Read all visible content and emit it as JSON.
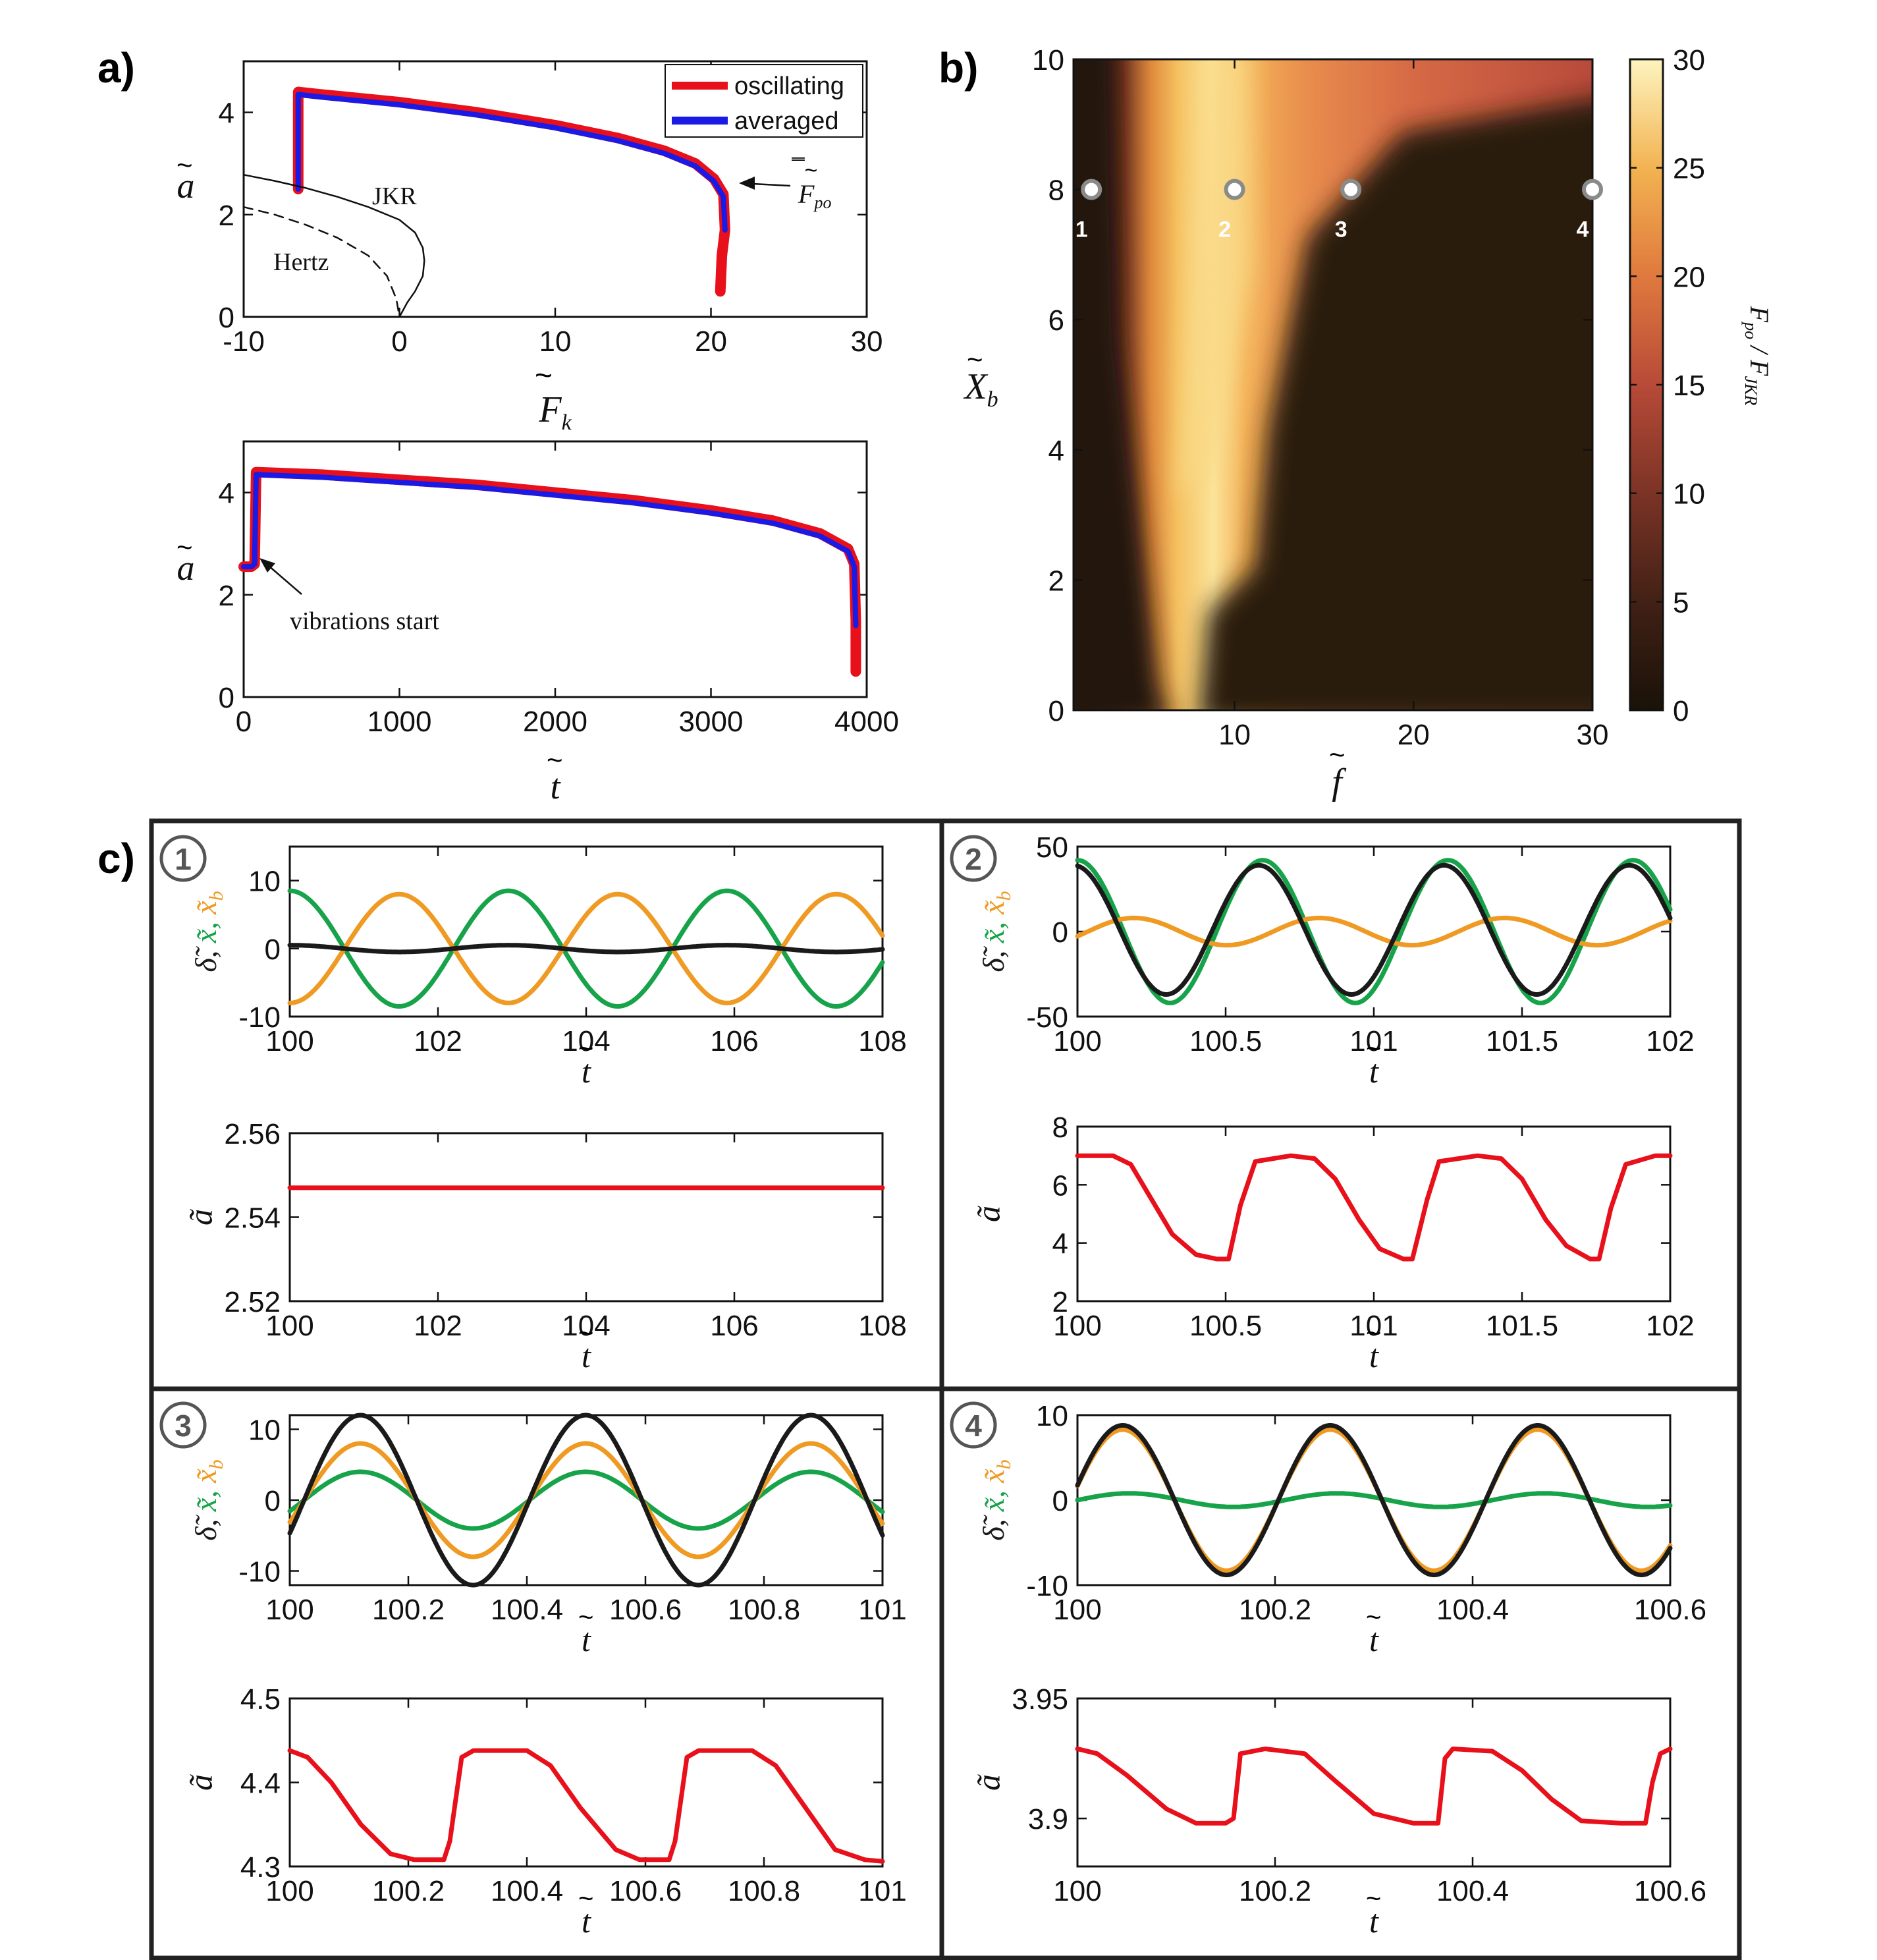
{
  "panel_labels": {
    "a": "a)",
    "b": "b)",
    "c": "c)"
  },
  "colors": {
    "oscillating": "#e8101a",
    "averaged": "#1a1ae6",
    "delta": "#1a1a1a",
    "x": "#17a34a",
    "xb": "#ef9a22",
    "a": "#e8101a"
  },
  "chart_data": [
    {
      "id": "a-top",
      "type": "line",
      "xlabel": "F~k",
      "ylabel": "a~",
      "xlim": [
        -10,
        30
      ],
      "ylim": [
        0,
        5
      ],
      "xticks": [
        "-10",
        "0",
        "10",
        "20",
        "30"
      ],
      "yticks": [
        "0",
        "2",
        "4"
      ],
      "legend": [
        "oscillating",
        "averaged"
      ],
      "legend_position": "top-right",
      "annotations": [
        "JKR",
        "Hertz",
        "F̿po"
      ],
      "series": [
        {
          "name": "oscillating",
          "x": [
            -6.5,
            -6.5,
            -5,
            0,
            5,
            10,
            14,
            17,
            19,
            20.2,
            20.8,
            20.9,
            20.7,
            20.6
          ],
          "y": [
            2.5,
            4.4,
            4.35,
            4.2,
            4.0,
            3.75,
            3.5,
            3.25,
            3.0,
            2.7,
            2.4,
            1.7,
            1.2,
            0.5
          ]
        },
        {
          "name": "averaged",
          "x": [
            -6.5,
            -6.5,
            -5,
            0,
            5,
            10,
            14,
            17,
            19,
            20.2,
            20.8,
            20.9
          ],
          "y": [
            2.5,
            4.35,
            4.3,
            4.15,
            3.95,
            3.7,
            3.45,
            3.2,
            2.95,
            2.65,
            2.35,
            1.7
          ]
        },
        {
          "name": "JKR",
          "x": [
            -10,
            -8,
            -6,
            -4,
            -2,
            0,
            1,
            1.5,
            1.6,
            1.5,
            1,
            0.5,
            0
          ],
          "y": [
            2.78,
            2.66,
            2.52,
            2.35,
            2.15,
            1.9,
            1.65,
            1.35,
            1.1,
            0.8,
            0.5,
            0.28,
            0
          ]
        },
        {
          "name": "Hertz",
          "x": [
            -10,
            -8,
            -6,
            -4,
            -2,
            -0.8,
            -0.2,
            0
          ],
          "y": [
            2.15,
            2.0,
            1.8,
            1.55,
            1.2,
            0.8,
            0.35,
            0
          ]
        }
      ]
    },
    {
      "id": "a-bottom",
      "type": "line",
      "xlabel": "t~",
      "ylabel": "a~",
      "xlim": [
        0,
        4000
      ],
      "ylim": [
        0,
        5
      ],
      "xticks": [
        "0",
        "1000",
        "2000",
        "3000",
        "4000"
      ],
      "yticks": [
        "0",
        "2",
        "4"
      ],
      "annotations": [
        "vibrations start"
      ],
      "series": [
        {
          "name": "oscillating",
          "x": [
            0,
            50,
            70,
            80,
            500,
            1000,
            1500,
            2000,
            2500,
            3000,
            3400,
            3700,
            3880,
            3920,
            3930,
            3930
          ],
          "y": [
            2.55,
            2.55,
            2.6,
            4.4,
            4.35,
            4.25,
            4.15,
            4.0,
            3.85,
            3.65,
            3.45,
            3.2,
            2.9,
            2.6,
            1.5,
            0.5
          ]
        },
        {
          "name": "averaged",
          "x": [
            0,
            50,
            70,
            80,
            500,
            1000,
            1500,
            2000,
            2500,
            3000,
            3400,
            3700,
            3880,
            3920,
            3930
          ],
          "y": [
            2.55,
            2.55,
            2.6,
            4.35,
            4.3,
            4.2,
            4.1,
            3.95,
            3.8,
            3.6,
            3.4,
            3.15,
            2.85,
            2.55,
            1.4
          ]
        }
      ]
    },
    {
      "id": "b",
      "type": "heatmap",
      "xlabel": "f~",
      "ylabel": "X~b",
      "xlim": [
        1,
        30
      ],
      "ylim": [
        0,
        10
      ],
      "xticks": [
        "10",
        "20",
        "30"
      ],
      "yticks": [
        "0",
        "2",
        "4",
        "6",
        "8",
        "10"
      ],
      "colorbar": {
        "label": "F̿po / F~JKR",
        "range": [
          0,
          30
        ],
        "ticks": [
          "0",
          "5",
          "10",
          "15",
          "20",
          "25",
          "30"
        ]
      },
      "markers": [
        {
          "label": "1",
          "f": 2,
          "X": 8
        },
        {
          "label": "2",
          "f": 10,
          "X": 8
        },
        {
          "label": "3",
          "f": 16.5,
          "X": 8
        },
        {
          "label": "4",
          "f": 30,
          "X": 8
        }
      ]
    },
    {
      "id": "c1-top",
      "type": "line",
      "circle": "1",
      "xlabel": "t~",
      "ylabel": "δ~, x~, x~b",
      "xlim": [
        100,
        108
      ],
      "ylim": [
        -10,
        15
      ],
      "xticks": [
        "100",
        "102",
        "104",
        "106",
        "108"
      ],
      "yticks": [
        "-10",
        "0",
        "10"
      ],
      "series": [
        {
          "name": "x",
          "color": "x",
          "amp": 8.5,
          "period": 2.95,
          "phase": 1.571,
          "offset": 0
        },
        {
          "name": "xb",
          "color": "xb",
          "amp": 8,
          "period": 2.95,
          "phase": -1.571,
          "offset": 0
        },
        {
          "name": "delta",
          "color": "delta",
          "amp": 0.5,
          "period": 2.95,
          "phase": 1.571,
          "offset": 0
        }
      ]
    },
    {
      "id": "c1-bottom",
      "type": "line",
      "xlabel": "t~",
      "ylabel": "a~",
      "xlim": [
        100,
        108
      ],
      "ylim": [
        2.52,
        2.56
      ],
      "xticks": [
        "100",
        "102",
        "104",
        "106",
        "108"
      ],
      "yticks": [
        "2.52",
        "2.54",
        "2.56"
      ],
      "series": [
        {
          "name": "a",
          "color": "a",
          "x": [
            100,
            102,
            104,
            106,
            108
          ],
          "y": [
            2.547,
            2.547,
            2.547,
            2.547,
            2.547
          ]
        }
      ]
    },
    {
      "id": "c2-top",
      "type": "line",
      "circle": "2",
      "xlabel": "t~",
      "ylabel": "δ~, x~, x~b",
      "xlim": [
        100,
        102
      ],
      "ylim": [
        -50,
        50
      ],
      "xticks": [
        "100",
        "100.5",
        "101",
        "101.5",
        "102"
      ],
      "yticks": [
        "-50",
        "0",
        "50"
      ],
      "series": [
        {
          "name": "x",
          "color": "x",
          "amp": 42,
          "period": 0.625,
          "phase": 1.571,
          "offset": 0
        },
        {
          "name": "xb",
          "color": "xb",
          "amp": 8,
          "period": 0.625,
          "phase": -0.35,
          "offset": 0
        },
        {
          "name": "delta",
          "color": "delta",
          "amp": 38,
          "period": 0.625,
          "phase": 1.7,
          "offset": 1
        }
      ]
    },
    {
      "id": "c2-bottom",
      "type": "line",
      "xlabel": "t~",
      "ylabel": "a~",
      "xlim": [
        100,
        102
      ],
      "ylim": [
        2,
        8
      ],
      "xticks": [
        "100",
        "100.5",
        "101",
        "101.5",
        "102"
      ],
      "yticks": [
        "2",
        "4",
        "6",
        "8"
      ],
      "series": [
        {
          "name": "a",
          "color": "a",
          "x": [
            100,
            100.12,
            100.18,
            100.25,
            100.32,
            100.4,
            100.47,
            100.51,
            100.55,
            100.6,
            100.72,
            100.8,
            100.87,
            100.95,
            101.02,
            101.1,
            101.13,
            101.18,
            101.22,
            101.35,
            101.43,
            101.5,
            101.58,
            101.65,
            101.73,
            101.76,
            101.8,
            101.85,
            101.95,
            102
          ],
          "y": [
            7,
            7,
            6.7,
            5.5,
            4.3,
            3.6,
            3.45,
            3.45,
            5.3,
            6.8,
            7,
            6.9,
            6.2,
            4.8,
            3.8,
            3.45,
            3.45,
            5.5,
            6.8,
            7,
            6.9,
            6.2,
            4.8,
            3.9,
            3.45,
            3.45,
            5.2,
            6.7,
            7,
            7
          ]
        }
      ]
    },
    {
      "id": "c3-top",
      "type": "line",
      "circle": "3",
      "xlabel": "t~",
      "ylabel": "δ~, x~, x~b",
      "xlim": [
        100,
        101
      ],
      "ylim": [
        -12,
        12
      ],
      "xticks": [
        "100",
        "100.2",
        "100.4",
        "100.6",
        "100.8",
        "101"
      ],
      "yticks": [
        "-10",
        "0",
        "10"
      ],
      "series": [
        {
          "name": "x",
          "color": "x",
          "amp": 4,
          "period": 0.38,
          "phase": -0.4,
          "offset": 0
        },
        {
          "name": "xb",
          "color": "xb",
          "amp": 8,
          "period": 0.38,
          "phase": -0.4,
          "offset": 0
        },
        {
          "name": "delta",
          "color": "delta",
          "amp": 12,
          "period": 0.38,
          "phase": -0.4,
          "offset": 0
        }
      ]
    },
    {
      "id": "c3-bottom",
      "type": "line",
      "xlabel": "t~",
      "ylabel": "a~",
      "xlim": [
        100,
        101
      ],
      "ylim": [
        4.3,
        4.5
      ],
      "xticks": [
        "100",
        "100.2",
        "100.4",
        "100.6",
        "100.8",
        "101"
      ],
      "yticks": [
        "4.3",
        "4.4",
        "4.5"
      ],
      "series": [
        {
          "name": "a",
          "color": "a",
          "x": [
            100,
            100.03,
            100.07,
            100.12,
            100.17,
            100.21,
            100.26,
            100.27,
            100.29,
            100.31,
            100.4,
            100.44,
            100.49,
            100.55,
            100.59,
            100.64,
            100.65,
            100.67,
            100.69,
            100.78,
            100.82,
            100.87,
            100.92,
            100.97,
            101
          ],
          "y": [
            4.438,
            4.43,
            4.4,
            4.35,
            4.315,
            4.308,
            4.308,
            4.33,
            4.43,
            4.438,
            4.438,
            4.42,
            4.37,
            4.32,
            4.308,
            4.308,
            4.33,
            4.43,
            4.438,
            4.438,
            4.42,
            4.37,
            4.32,
            4.308,
            4.306
          ]
        }
      ]
    },
    {
      "id": "c4-top",
      "type": "line",
      "circle": "4",
      "xlabel": "t~",
      "ylabel": "δ~, x~, x~b",
      "xlim": [
        100,
        100.6
      ],
      "ylim": [
        -10,
        10
      ],
      "xticks": [
        "100",
        "100.2",
        "100.4",
        "100.6"
      ],
      "yticks": [
        "-10",
        "0",
        "10"
      ],
      "series": [
        {
          "name": "x",
          "color": "x",
          "amp": 0.8,
          "period": 0.21,
          "phase": 0,
          "offset": 0
        },
        {
          "name": "xb",
          "color": "xb",
          "amp": 8.3,
          "period": 0.21,
          "phase": 0.2,
          "offset": 0
        },
        {
          "name": "delta",
          "color": "delta",
          "amp": 8.8,
          "period": 0.21,
          "phase": 0.2,
          "offset": 0
        }
      ]
    },
    {
      "id": "c4-bottom",
      "type": "line",
      "xlabel": "t~",
      "ylabel": "a~",
      "xlim": [
        100,
        100.6
      ],
      "ylim": [
        3.88,
        3.95
      ],
      "xticks": [
        "100",
        "100.2",
        "100.4",
        "100.6"
      ],
      "yticks": [
        "3.9",
        "3.95"
      ],
      "series": [
        {
          "name": "a",
          "color": "a",
          "x": [
            100,
            100.02,
            100.05,
            100.09,
            100.12,
            100.15,
            100.158,
            100.165,
            100.19,
            100.23,
            100.26,
            100.3,
            100.34,
            100.365,
            100.372,
            100.38,
            100.42,
            100.45,
            100.48,
            100.51,
            100.55,
            100.575,
            100.582,
            100.59,
            100.6
          ],
          "y": [
            3.929,
            3.927,
            3.918,
            3.904,
            3.898,
            3.898,
            3.9,
            3.927,
            3.929,
            3.927,
            3.916,
            3.902,
            3.898,
            3.898,
            3.925,
            3.929,
            3.928,
            3.92,
            3.908,
            3.899,
            3.898,
            3.898,
            3.915,
            3.927,
            3.929
          ]
        }
      ]
    }
  ]
}
